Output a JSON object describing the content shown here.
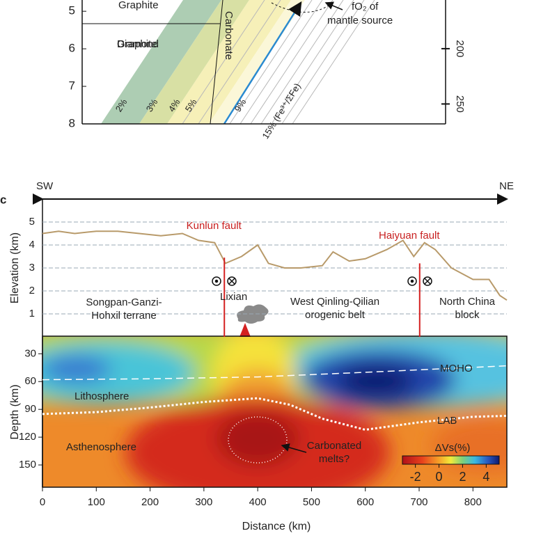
{
  "panel_top": {
    "ylim": [
      4.7,
      8
    ],
    "yticks": [
      5,
      6,
      7,
      8
    ],
    "y2lim": [
      156,
      268
    ],
    "y2ticks": [
      200,
      250
    ],
    "phase_labels": [
      "Graphite",
      "Diamond",
      "Carbonate"
    ],
    "band_labels": [
      "2%",
      "3%",
      "4%",
      "5%",
      "9%",
      "15% (Fe³⁺/ΣFe)"
    ],
    "source_label": [
      "fO₂ of",
      "mantle source"
    ]
  },
  "panel_c": {
    "label": "c",
    "left_end": "SW",
    "right_end": "NE",
    "xlim": [
      0,
      863
    ],
    "xticks": [
      0,
      100,
      200,
      300,
      400,
      500,
      600,
      700,
      800
    ],
    "xlabel": "Distance (km)",
    "elevation": {
      "ylabel": "Elevation (km)",
      "ylim": [
        0,
        6
      ],
      "yticks": [
        1,
        2,
        3,
        4,
        5
      ],
      "profile": {
        "distance": [
          0,
          30,
          60,
          100,
          140,
          180,
          220,
          260,
          290,
          320,
          340,
          370,
          400,
          420,
          450,
          480,
          520,
          540,
          570,
          600,
          640,
          670,
          690,
          710,
          730,
          760,
          800,
          830,
          850,
          863
        ],
        "elevation": [
          4.5,
          4.6,
          4.5,
          4.6,
          4.6,
          4.5,
          4.4,
          4.5,
          4.2,
          4.1,
          3.2,
          3.5,
          4.0,
          3.2,
          3.0,
          3.0,
          3.1,
          3.7,
          3.3,
          3.4,
          3.8,
          4.2,
          3.5,
          4.1,
          3.8,
          3.0,
          2.5,
          2.5,
          1.8,
          1.6
        ]
      },
      "faults": [
        {
          "name": "Kunlun fault",
          "distance": 338,
          "top": 3.45
        },
        {
          "name": "Haiyuan fault",
          "distance": 701,
          "top": 3.2
        }
      ],
      "volcano": {
        "name": "Lixian",
        "distance": 376
      },
      "regions": [
        [
          "Songpan-Ganzi-",
          "Hohxil terrane"
        ],
        [
          "West Qinling-Qilian",
          "orogenic belt"
        ],
        [
          "North China",
          "block"
        ]
      ]
    },
    "depth": {
      "ylabel": "Depth (km)",
      "ylim": [
        11,
        174
      ],
      "yticks": [
        30,
        60,
        90,
        120,
        150
      ],
      "moho": {
        "name": "MOHO",
        "distance": [
          0,
          200,
          400,
          600,
          863
        ],
        "depth": [
          58,
          57,
          55,
          50,
          43
        ]
      },
      "lab": {
        "name": "LAB",
        "distance": [
          0,
          100,
          200,
          300,
          400,
          460,
          520,
          600,
          700,
          800,
          863
        ],
        "depth": [
          95,
          93,
          88,
          82,
          78,
          85,
          100,
          112,
          104,
          98,
          97
        ]
      },
      "labels": [
        "Lithosphere",
        "Asthenosphere"
      ],
      "melt_label": [
        "Carbonated",
        "melts?"
      ],
      "colorbar": {
        "label": "ΔVs(%)",
        "clim": [
          -3.1,
          5.1
        ],
        "ticks": [
          -2,
          0,
          2,
          4
        ]
      }
    }
  }
}
